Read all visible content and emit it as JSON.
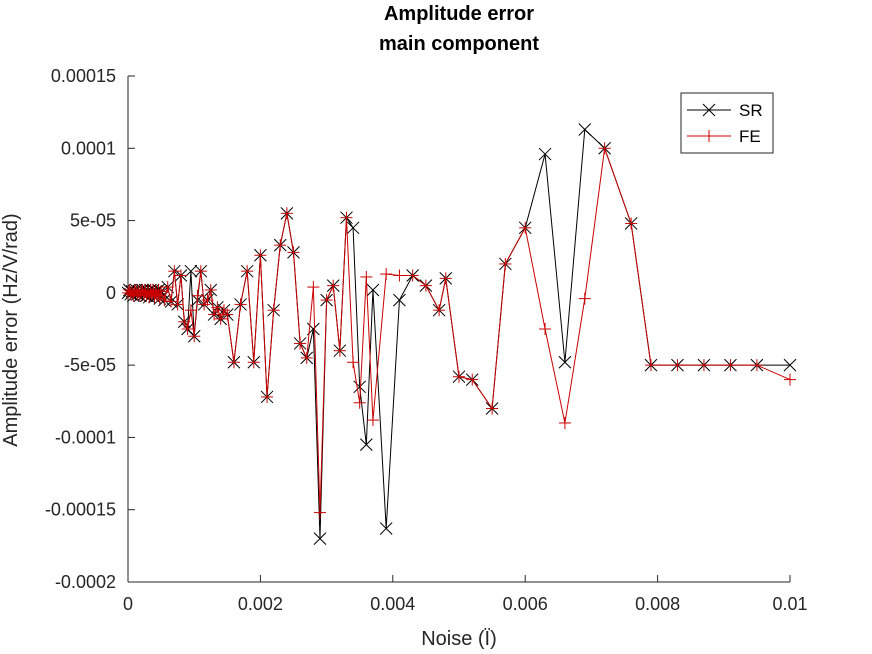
{
  "chart_data": {
    "type": "line",
    "title": [
      "Amplitude error",
      "main component"
    ],
    "xlabel": "Noise (Ï)",
    "ylabel": "Amplitude error (Hz/V/rad)",
    "xlim": [
      0,
      0.01
    ],
    "ylim": [
      -0.0002,
      0.00015
    ],
    "xticks": [
      0,
      0.002,
      0.004,
      0.006,
      0.008,
      0.01
    ],
    "xtick_labels": [
      "0",
      "0.002",
      "0.004",
      "0.006",
      "0.008",
      "0.01"
    ],
    "yticks": [
      -0.0002,
      -0.00015,
      -0.0001,
      -5e-05,
      0,
      5e-05,
      0.0001,
      0.00015
    ],
    "ytick_labels": [
      "-0.0002",
      "-0.00015",
      "-0.0001",
      "-5e-05",
      "0",
      "5e-05",
      "0.0001",
      "0.00015"
    ],
    "grid": false,
    "legend_position": "top-right",
    "series": [
      {
        "name": "SR",
        "color": "#000000",
        "marker": "x",
        "x": [
          0,
          3e-05,
          6e-05,
          0.0001,
          0.00013,
          0.00016,
          0.0002,
          0.00023,
          0.00026,
          0.0003,
          0.00033,
          0.00036,
          0.0004,
          0.00043,
          0.00046,
          0.0005,
          0.00055,
          0.0006,
          0.00065,
          0.0007,
          0.00075,
          0.0008,
          0.00085,
          0.0009,
          0.00095,
          0.001,
          0.00105,
          0.0011,
          0.00115,
          0.0012,
          0.00125,
          0.0013,
          0.0014,
          0.0015,
          0.0016,
          0.0017,
          0.0018,
          0.0019,
          0.002,
          0.0021,
          0.0022,
          0.0023,
          0.0024,
          0.0025,
          0.0026,
          0.0028,
          0.0029,
          0.003,
          0.0031,
          0.0032,
          0.0033,
          0.0034,
          0.0035,
          0.0036,
          0.0038,
          0.0039,
          0.0041,
          0.0042,
          0.0044,
          0.0045,
          0.0047,
          0.0048,
          0.005,
          0.0052,
          0.0055,
          0.0058,
          0.006,
          0.0063,
          0.0066,
          0.0069,
          0.0072,
          0.0076,
          0.0079,
          0.0083,
          0.0087,
          0.0091,
          0.0095,
          0.01
        ],
        "y": [
          0,
          2e-06,
          -2e-06,
          1e-06,
          -1e-06,
          3e-06,
          -2e-06,
          1e-06,
          2e-06,
          -3e-06,
          1e-06,
          -2e-06,
          3e-06,
          -4e-06,
          2e-06,
          -3e-06,
          -5e-06,
          4e-06,
          -4e-06,
          1.5e-05,
          -8e-06,
          1e-05,
          -2e-05,
          -2.5e-05,
          1.5e-05,
          -3e-05,
          -5e-06,
          1.5e-05,
          -6e-06,
          -2e-06,
          0,
          -1.5e-05,
          -1.8e-05,
          -1.5e-05,
          -4.8e-05,
          -8e-06,
          1.5e-05,
          -4.8e-05,
          2.6e-05,
          -7.2e-05,
          -1.2e-05,
          3.3e-05,
          5.5e-05,
          2.8e-05,
          -3.5e-05,
          -4.5e-05,
          -2.5e-05,
          -0.00017,
          -5e-06,
          5e-06,
          -4e-05,
          5.2e-05,
          4.5e-05,
          -6.5e-05,
          -0.000105,
          2e-06,
          -0.000163,
          -5e-06,
          1.2e-05,
          5e-06,
          -1.2e-05,
          1e-05,
          -5.8e-05,
          -6e-05,
          -8e-05,
          2e-05,
          4.5e-05,
          9.6e-05,
          -4.8e-05,
          0.000113,
          0.0001,
          4.8e-05,
          -5e-05,
          -5e-05,
          -5e-05,
          -5e-05,
          -5e-05,
          -5e-05
        ],
        "points_comment": ""
      },
      {
        "name": "FE",
        "color": "#cc0000",
        "marker": "+",
        "x": [],
        "y": []
      }
    ]
  }
}
